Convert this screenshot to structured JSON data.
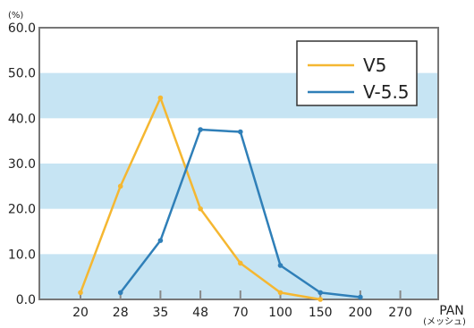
{
  "chart_data": {
    "type": "line",
    "title": "",
    "xlabel": "",
    "ylabel": "",
    "y_unit": "(%)",
    "x_unit_top": "PAN",
    "x_unit_bottom": "(メッシュ)",
    "categories": [
      "20",
      "28",
      "35",
      "48",
      "70",
      "100",
      "150",
      "200",
      "270"
    ],
    "ylim": [
      0,
      60
    ],
    "yticks": [
      "0.0",
      "10.0",
      "20.0",
      "30.0",
      "40.0",
      "50.0",
      "60.0"
    ],
    "grid": "alternating horizontal bands",
    "legend_position": "top-right",
    "band_color": "#c6e4f3",
    "series": [
      {
        "name": "V5",
        "color": "#f5b731",
        "values": [
          1.5,
          25,
          44.5,
          20,
          8,
          1.5,
          0,
          null,
          null
        ]
      },
      {
        "name": "V-5.5",
        "color": "#2f7fb8",
        "values": [
          null,
          1.5,
          13,
          37.5,
          37,
          7.5,
          1.5,
          0.5,
          null
        ]
      }
    ]
  }
}
